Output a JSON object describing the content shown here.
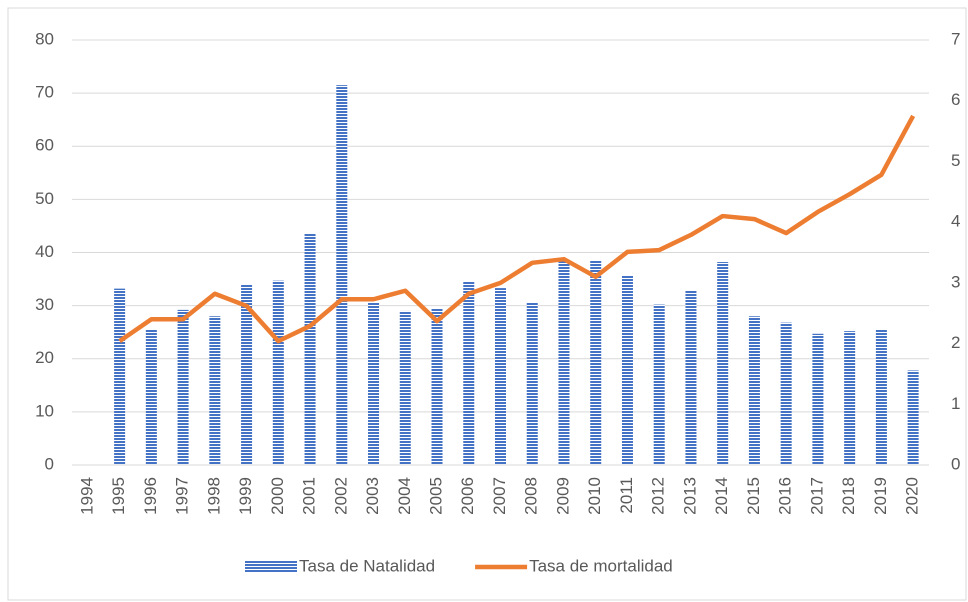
{
  "chart_data": {
    "type": "bar_line",
    "categories": [
      "1994",
      "1995",
      "1996",
      "1997",
      "1998",
      "1999",
      "2000",
      "2001",
      "2002",
      "2003",
      "2004",
      "2005",
      "2006",
      "2007",
      "2008",
      "2009",
      "2010",
      "2011",
      "2012",
      "2013",
      "2014",
      "2015",
      "2016",
      "2017",
      "2018",
      "2019",
      "2020"
    ],
    "series": [
      {
        "name": "Tasa de Natalidad",
        "type": "bar",
        "color": "#4472c4",
        "values": [
          null,
          33.2,
          25.5,
          29.2,
          28,
          34,
          34.7,
          43.5,
          71.5,
          30.5,
          29,
          29.5,
          34.5,
          33.3,
          30.5,
          38.5,
          38.5,
          35.7,
          30.2,
          32.8,
          38.2,
          28,
          26.8,
          24.7,
          25.2,
          25.5,
          17.8
        ]
      },
      {
        "name": "Tasa de mortalidad",
        "type": "line",
        "axis": "y2",
        "color": "#ed7d31",
        "values": [
          null,
          2.04,
          2.4,
          2.4,
          2.82,
          2.62,
          2.04,
          2.29,
          2.73,
          2.73,
          2.87,
          2.37,
          2.82,
          3.0,
          3.33,
          3.39,
          3.1,
          3.51,
          3.54,
          3.79,
          4.1,
          4.05,
          3.82,
          4.17,
          4.46,
          4.78,
          5.75
        ]
      }
    ],
    "ylim": [
      0,
      80
    ],
    "yticks": [
      0,
      10,
      20,
      30,
      40,
      50,
      60,
      70,
      80
    ],
    "y2lim": [
      0,
      7
    ],
    "y2ticks": [
      0,
      1,
      2,
      3,
      4,
      5,
      6,
      7
    ],
    "grid": true,
    "legend": "bottom"
  }
}
